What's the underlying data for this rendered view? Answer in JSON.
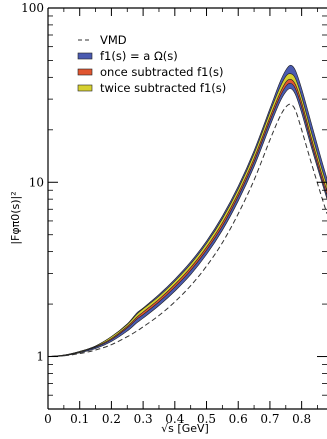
{
  "chart_data": {
    "type": "line",
    "xlabel": "√s [GeV]",
    "ylabel": "|Fφπ0(s)|²",
    "xlim": [
      0,
      0.88
    ],
    "ylim": [
      0.5,
      100
    ],
    "yscale": "log",
    "x_ticks": [
      "0",
      "0.1",
      "0.2",
      "0.3",
      "0.4",
      "0.5",
      "0.6",
      "0.7",
      "0.8"
    ],
    "y_ticks": [
      "1",
      "10",
      "100"
    ],
    "grid": false,
    "legend_position": "top-left",
    "x": [
      0,
      0.05,
      0.1,
      0.15,
      0.2,
      0.25,
      0.28,
      0.3,
      0.35,
      0.4,
      0.45,
      0.5,
      0.55,
      0.6,
      0.65,
      0.7,
      0.73,
      0.75,
      0.765,
      0.78,
      0.8,
      0.83,
      0.86,
      0.88
    ],
    "series": [
      {
        "name": "VMD",
        "style": "dashed",
        "color": "#333333",
        "values": [
          1.0,
          1.01,
          1.04,
          1.09,
          1.17,
          1.3,
          1.4,
          1.48,
          1.72,
          2.06,
          2.55,
          3.3,
          4.5,
          6.6,
          10.3,
          17.5,
          23.5,
          27.0,
          28.0,
          26.0,
          20.0,
          13.0,
          8.6,
          6.6
        ]
      },
      {
        "name": "f1(s) = a Ω(s)",
        "style": "band",
        "color": "#4a5ab0",
        "lower": [
          1.0,
          1.01,
          1.05,
          1.11,
          1.22,
          1.4,
          1.56,
          1.66,
          1.96,
          2.37,
          2.95,
          3.85,
          5.3,
          7.8,
          12.3,
          21.0,
          28.5,
          33.0,
          34.5,
          32.0,
          25.0,
          16.0,
          10.5,
          8.0
        ],
        "upper": [
          1.0,
          1.02,
          1.07,
          1.15,
          1.3,
          1.54,
          1.78,
          1.9,
          2.27,
          2.78,
          3.5,
          4.6,
          6.4,
          9.5,
          15.2,
          26.5,
          37.0,
          44.0,
          47.0,
          44.0,
          34.5,
          22.0,
          14.0,
          10.5
        ]
      },
      {
        "name": "once subtracted f1(s)",
        "style": "band",
        "color": "#e05530",
        "lower": [
          1.0,
          1.01,
          1.06,
          1.13,
          1.25,
          1.46,
          1.64,
          1.74,
          2.06,
          2.5,
          3.12,
          4.08,
          5.6,
          8.3,
          13.1,
          22.5,
          30.5,
          35.5,
          37.0,
          34.5,
          27.0,
          17.0,
          11.0,
          8.4
        ],
        "upper": [
          1.0,
          1.02,
          1.06,
          1.14,
          1.28,
          1.5,
          1.7,
          1.82,
          2.15,
          2.62,
          3.28,
          4.3,
          5.95,
          8.8,
          14.0,
          24.2,
          33.0,
          38.5,
          40.0,
          37.5,
          29.5,
          18.6,
          12.0,
          9.1
        ]
      },
      {
        "name": "twice subtracted f1(s)",
        "style": "band",
        "color": "#d6d030",
        "lower": [
          1.0,
          1.015,
          1.06,
          1.14,
          1.27,
          1.49,
          1.68,
          1.8,
          2.13,
          2.59,
          3.24,
          4.24,
          5.85,
          8.65,
          13.7,
          23.6,
          32.0,
          37.5,
          39.0,
          36.5,
          28.7,
          18.1,
          11.7,
          8.9
        ],
        "upper": [
          1.0,
          1.02,
          1.07,
          1.15,
          1.3,
          1.53,
          1.75,
          1.88,
          2.22,
          2.71,
          3.4,
          4.46,
          6.18,
          9.15,
          14.6,
          25.3,
          34.5,
          40.5,
          42.0,
          39.5,
          31.0,
          19.6,
          12.6,
          9.6
        ]
      }
    ]
  }
}
